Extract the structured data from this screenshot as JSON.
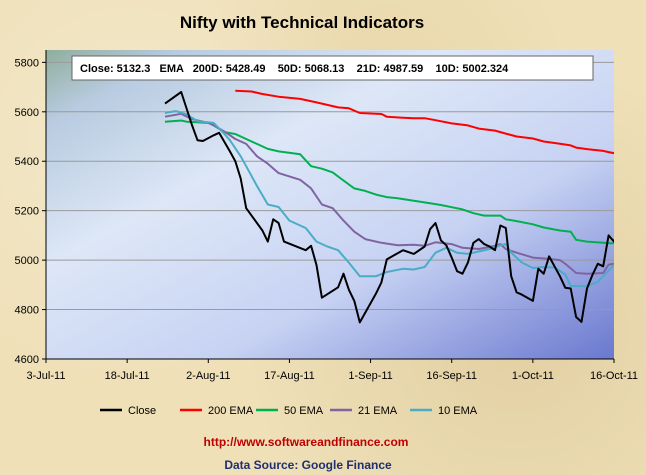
{
  "chart_data": {
    "type": "line",
    "title": "Nifty with Technical Indicators",
    "annotation": "Close: 5132.3   EMA   200D: 5428.49    50D: 5068.13    21D: 4987.59    10D: 5002.324",
    "x_tick_labels": [
      "3-Jul-11",
      "18-Jul-11",
      "2-Aug-11",
      "17-Aug-11",
      "1-Sep-11",
      "16-Sep-11",
      "1-Oct-11",
      "16-Oct-11"
    ],
    "x_range_days": [
      0,
      105
    ],
    "y_ticks": [
      4600,
      4800,
      5000,
      5200,
      5400,
      5600,
      5800
    ],
    "ylim": [
      4600,
      5850
    ],
    "grid": true,
    "legend_position": "bottom",
    "series": [
      {
        "name": "Close",
        "color": "#000000",
        "points": [
          [
            22,
            5633
          ],
          [
            25,
            5680
          ],
          [
            27,
            5545
          ],
          [
            28,
            5485
          ],
          [
            29,
            5482
          ],
          [
            31,
            5505
          ],
          [
            32,
            5515
          ],
          [
            34,
            5440
          ],
          [
            35,
            5400
          ],
          [
            36,
            5330
          ],
          [
            37,
            5210
          ],
          [
            40,
            5120
          ],
          [
            41,
            5075
          ],
          [
            42,
            5165
          ],
          [
            43,
            5150
          ],
          [
            44,
            5075
          ],
          [
            48,
            5040
          ],
          [
            49,
            5058
          ],
          [
            50,
            4980
          ],
          [
            51,
            4848
          ],
          [
            54,
            4890
          ],
          [
            55,
            4945
          ],
          [
            56,
            4880
          ],
          [
            57,
            4835
          ],
          [
            58,
            4748
          ],
          [
            61,
            4865
          ],
          [
            62,
            4910
          ],
          [
            63,
            5003
          ],
          [
            66,
            5040
          ],
          [
            68,
            5025
          ],
          [
            70,
            5055
          ],
          [
            71,
            5125
          ],
          [
            72,
            5150
          ],
          [
            73,
            5080
          ],
          [
            74,
            5060
          ],
          [
            75,
            5010
          ],
          [
            76,
            4955
          ],
          [
            77,
            4945
          ],
          [
            78,
            4990
          ],
          [
            79,
            5070
          ],
          [
            80,
            5085
          ],
          [
            81,
            5065
          ],
          [
            82,
            5055
          ],
          [
            83,
            5040
          ],
          [
            84,
            5140
          ],
          [
            85,
            5130
          ],
          [
            86,
            4935
          ],
          [
            87,
            4870
          ],
          [
            88,
            4860
          ],
          [
            90,
            4835
          ],
          [
            91,
            4965
          ],
          [
            92,
            4945
          ],
          [
            93,
            5015
          ],
          [
            94,
            4975
          ],
          [
            95,
            4935
          ],
          [
            96,
            4888
          ],
          [
            97,
            4885
          ],
          [
            98,
            4770
          ],
          [
            99,
            4750
          ],
          [
            100,
            4885
          ],
          [
            101,
            4940
          ],
          [
            102,
            4985
          ],
          [
            103,
            4975
          ],
          [
            104,
            5100
          ],
          [
            105,
            5075
          ],
          [
            106,
            5132
          ]
        ]
      },
      {
        "name": "200 EMA",
        "color": "#ff0000",
        "points": [
          [
            35,
            5685
          ],
          [
            38,
            5682
          ],
          [
            40,
            5672
          ],
          [
            43,
            5661
          ],
          [
            47,
            5652
          ],
          [
            50,
            5638
          ],
          [
            54,
            5618
          ],
          [
            56,
            5614
          ],
          [
            58,
            5595
          ],
          [
            62,
            5591
          ],
          [
            63,
            5580
          ],
          [
            66,
            5576
          ],
          [
            68,
            5574
          ],
          [
            70,
            5574
          ],
          [
            72,
            5566
          ],
          [
            75,
            5553
          ],
          [
            78,
            5545
          ],
          [
            80,
            5532
          ],
          [
            83,
            5524
          ],
          [
            85,
            5512
          ],
          [
            87,
            5500
          ],
          [
            90,
            5492
          ],
          [
            92,
            5480
          ],
          [
            95,
            5471
          ],
          [
            97,
            5464
          ],
          [
            98,
            5455
          ],
          [
            100,
            5449
          ],
          [
            103,
            5442
          ],
          [
            104,
            5437
          ],
          [
            106,
            5428
          ]
        ]
      },
      {
        "name": "50 EMA",
        "color": "#00b050",
        "points": [
          [
            22,
            5560
          ],
          [
            25,
            5565
          ],
          [
            26,
            5560
          ],
          [
            30,
            5555
          ],
          [
            31,
            5545
          ],
          [
            33,
            5518
          ],
          [
            35,
            5510
          ],
          [
            38,
            5480
          ],
          [
            40,
            5460
          ],
          [
            41,
            5450
          ],
          [
            43,
            5440
          ],
          [
            47,
            5428
          ],
          [
            49,
            5380
          ],
          [
            51,
            5370
          ],
          [
            53,
            5355
          ],
          [
            55,
            5322
          ],
          [
            57,
            5290
          ],
          [
            59,
            5280
          ],
          [
            61,
            5265
          ],
          [
            63,
            5255
          ],
          [
            65,
            5250
          ],
          [
            68,
            5240
          ],
          [
            71,
            5230
          ],
          [
            73,
            5223
          ],
          [
            75,
            5214
          ],
          [
            77,
            5205
          ],
          [
            79,
            5190
          ],
          [
            81,
            5180
          ],
          [
            84,
            5180
          ],
          [
            85,
            5165
          ],
          [
            87,
            5158
          ],
          [
            90,
            5145
          ],
          [
            92,
            5132
          ],
          [
            95,
            5120
          ],
          [
            97,
            5115
          ],
          [
            98,
            5082
          ],
          [
            100,
            5075
          ],
          [
            103,
            5070
          ],
          [
            104,
            5068
          ],
          [
            106,
            5068
          ]
        ]
      },
      {
        "name": "21 EMA",
        "color": "#8064a2",
        "points": [
          [
            22,
            5580
          ],
          [
            25,
            5592
          ],
          [
            27,
            5570
          ],
          [
            30,
            5555
          ],
          [
            31,
            5545
          ],
          [
            33,
            5520
          ],
          [
            35,
            5490
          ],
          [
            37,
            5470
          ],
          [
            39,
            5420
          ],
          [
            41,
            5390
          ],
          [
            43,
            5352
          ],
          [
            47,
            5325
          ],
          [
            49,
            5290
          ],
          [
            51,
            5225
          ],
          [
            53,
            5210
          ],
          [
            55,
            5160
          ],
          [
            57,
            5115
          ],
          [
            59,
            5085
          ],
          [
            62,
            5070
          ],
          [
            65,
            5060
          ],
          [
            68,
            5062
          ],
          [
            70,
            5058
          ],
          [
            72,
            5072
          ],
          [
            75,
            5065
          ],
          [
            77,
            5050
          ],
          [
            80,
            5045
          ],
          [
            83,
            5058
          ],
          [
            84,
            5065
          ],
          [
            85,
            5045
          ],
          [
            87,
            5030
          ],
          [
            90,
            5010
          ],
          [
            93,
            5005
          ],
          [
            95,
            5000
          ],
          [
            96,
            4985
          ],
          [
            98,
            4948
          ],
          [
            100,
            4945
          ],
          [
            103,
            4948
          ],
          [
            104,
            4982
          ],
          [
            106,
            4988
          ]
        ]
      },
      {
        "name": "10 EMA",
        "color": "#4bacc6",
        "points": [
          [
            22,
            5595
          ],
          [
            24,
            5603
          ],
          [
            26,
            5590
          ],
          [
            28,
            5562
          ],
          [
            31,
            5555
          ],
          [
            33,
            5510
          ],
          [
            34,
            5485
          ],
          [
            36,
            5420
          ],
          [
            37,
            5380
          ],
          [
            39,
            5300
          ],
          [
            41,
            5225
          ],
          [
            43,
            5215
          ],
          [
            45,
            5160
          ],
          [
            48,
            5130
          ],
          [
            50,
            5075
          ],
          [
            52,
            5055
          ],
          [
            54,
            5040
          ],
          [
            56,
            4990
          ],
          [
            58,
            4935
          ],
          [
            61,
            4935
          ],
          [
            63,
            4952
          ],
          [
            66,
            4965
          ],
          [
            68,
            4962
          ],
          [
            70,
            4972
          ],
          [
            72,
            5030
          ],
          [
            74,
            5050
          ],
          [
            76,
            5030
          ],
          [
            78,
            5025
          ],
          [
            80,
            5035
          ],
          [
            82,
            5045
          ],
          [
            84,
            5060
          ],
          [
            85,
            5065
          ],
          [
            86,
            5030
          ],
          [
            88,
            4990
          ],
          [
            90,
            4968
          ],
          [
            92,
            4972
          ],
          [
            94,
            4970
          ],
          [
            96,
            4942
          ],
          [
            97,
            4895
          ],
          [
            100,
            4895
          ],
          [
            102,
            4912
          ],
          [
            104,
            4958
          ],
          [
            106,
            5002
          ]
        ]
      }
    ]
  },
  "footer": {
    "url": "http://www.softwareandfinance.com",
    "source": "Data Source: Google Finance"
  }
}
